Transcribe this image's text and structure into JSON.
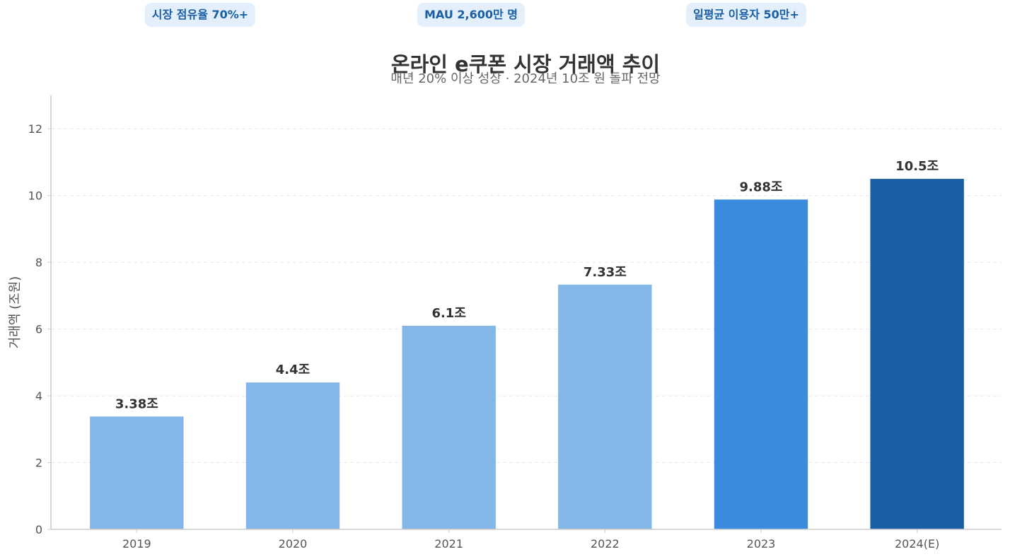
{
  "badges": [
    {
      "label": "시장 점유율 70%+"
    },
    {
      "label": "MAU 2,600만 명"
    },
    {
      "label": "일평균 이용자 50만+"
    }
  ],
  "colors": {
    "bar_light": "#85b6e8",
    "bar_mid": "#3a8ade",
    "bar_dark": "#1a5ea4",
    "axis": "#cccccc",
    "grid": "#e4e7ea",
    "tick_text": "#555555",
    "title_text": "#333333",
    "badge_bg": "#e3effb",
    "badge_text": "#1a5ea4"
  },
  "chart_data": {
    "type": "bar",
    "title": "온라인 e쿠폰 시장 거래액 추이",
    "subtitle": "매년 20% 이상 성장 · 2024년 10조 원 돌파 전망",
    "xlabel": "",
    "ylabel": "거래액 (조원)",
    "categories": [
      "2019",
      "2020",
      "2021",
      "2022",
      "2023",
      "2024(E)"
    ],
    "values": [
      3.38,
      4.4,
      6.1,
      7.33,
      9.88,
      10.5
    ],
    "data_labels": [
      "3.38조",
      "4.4조",
      "6.1조",
      "7.33조",
      "9.88조",
      "10.5조"
    ],
    "bar_colors": [
      "#85b6e8",
      "#85b6e8",
      "#85b6e8",
      "#85b6e8",
      "#3a8ade",
      "#1a5ea4"
    ],
    "ylim": [
      0,
      13
    ],
    "yticks": [
      0,
      2,
      4,
      6,
      8,
      10,
      12
    ],
    "grid": true,
    "legend": false
  }
}
